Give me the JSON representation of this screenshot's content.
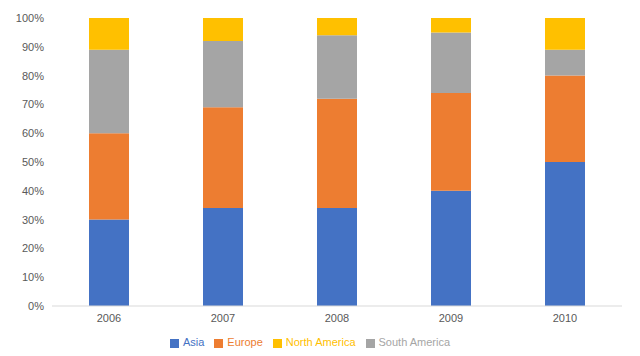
{
  "chart_data": {
    "type": "bar",
    "stacked": true,
    "grid": false,
    "legend": "bottom",
    "categories": [
      "2006",
      "2007",
      "2008",
      "2009",
      "2010"
    ],
    "series": [
      {
        "name": "Asia",
        "color": "#4472c4",
        "values": [
          30,
          34,
          34,
          40,
          50
        ]
      },
      {
        "name": "Europe",
        "color": "#ed7d31",
        "values": [
          30,
          35,
          38,
          34,
          30
        ]
      },
      {
        "name": "South America",
        "color": "#a5a5a5",
        "values": [
          29,
          23,
          22,
          21,
          9
        ]
      },
      {
        "name": "North America",
        "color": "#ffc000",
        "values": [
          11,
          8,
          6,
          5,
          11
        ]
      }
    ],
    "ylim": [
      0,
      100
    ],
    "yticks": [
      {
        "value": 0,
        "label": "0%"
      },
      {
        "value": 10,
        "label": "10%"
      },
      {
        "value": 20,
        "label": "20%"
      },
      {
        "value": 30,
        "label": "30%"
      },
      {
        "value": 40,
        "label": "40%"
      },
      {
        "value": 50,
        "label": "50%"
      },
      {
        "value": 60,
        "label": "60%"
      },
      {
        "value": 70,
        "label": "70%"
      },
      {
        "value": 80,
        "label": "80%"
      },
      {
        "value": 90,
        "label": "90%"
      },
      {
        "value": 100,
        "label": "100%"
      }
    ]
  }
}
